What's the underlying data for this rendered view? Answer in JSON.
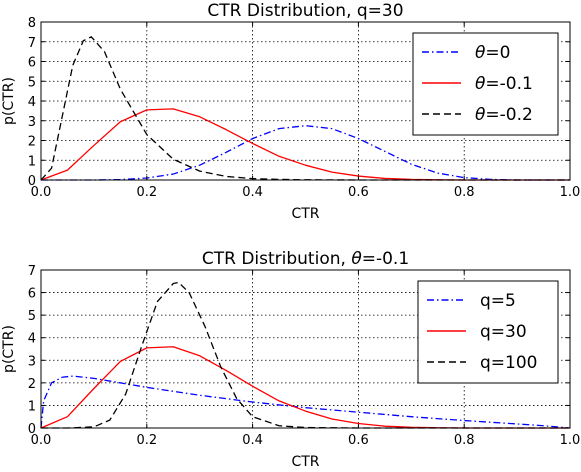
{
  "chart_data": [
    {
      "type": "line",
      "title_prefix": "CTR Distribution, ",
      "title_symbol": "",
      "title_suffix": "q=30",
      "xlabel": "CTR",
      "ylabel": "p(CTR)",
      "xlim": [
        0,
        1.0
      ],
      "ylim": [
        0,
        8
      ],
      "xticks": [
        "0.0",
        "0.2",
        "0.4",
        "0.6",
        "0.8",
        "1.0"
      ],
      "yticks": [
        "0",
        "1",
        "2",
        "3",
        "4",
        "5",
        "6",
        "7",
        "8"
      ],
      "grid": true,
      "legend_position": "top-right",
      "series": [
        {
          "name_symbol": "θ",
          "name_suffix": "=0",
          "color": "#0000ff",
          "style": "dashdot",
          "x": [
            0.0,
            0.05,
            0.1,
            0.15,
            0.2,
            0.25,
            0.3,
            0.35,
            0.4,
            0.45,
            0.5,
            0.55,
            0.6,
            0.65,
            0.7,
            0.75,
            0.8,
            0.85,
            0.9,
            0.95,
            1.0
          ],
          "y": [
            0.0,
            0.0,
            0.0,
            0.02,
            0.1,
            0.3,
            0.75,
            1.4,
            2.1,
            2.6,
            2.75,
            2.6,
            2.1,
            1.45,
            0.8,
            0.35,
            0.12,
            0.03,
            0.0,
            0.0,
            0.0
          ]
        },
        {
          "name_symbol": "θ",
          "name_suffix": "=-0.1",
          "color": "#ff0000",
          "style": "solid",
          "x": [
            0.0,
            0.05,
            0.1,
            0.15,
            0.2,
            0.25,
            0.3,
            0.35,
            0.4,
            0.45,
            0.5,
            0.55,
            0.6,
            0.65,
            0.7,
            0.75,
            0.8,
            0.85,
            0.9,
            0.95,
            1.0
          ],
          "y": [
            0.0,
            0.5,
            1.75,
            2.95,
            3.55,
            3.6,
            3.2,
            2.55,
            1.85,
            1.2,
            0.75,
            0.4,
            0.2,
            0.08,
            0.03,
            0.01,
            0.0,
            0.0,
            0.0,
            0.0,
            0.0
          ]
        },
        {
          "name_symbol": "θ",
          "name_suffix": "=-0.2",
          "color": "#000000",
          "style": "dashed",
          "x": [
            0.0,
            0.02,
            0.04,
            0.06,
            0.08,
            0.095,
            0.12,
            0.15,
            0.2,
            0.25,
            0.3,
            0.35,
            0.4,
            0.45,
            0.5,
            0.6,
            0.7,
            0.8,
            0.9,
            1.0
          ],
          "y": [
            0.0,
            0.6,
            3.2,
            5.8,
            7.05,
            7.25,
            6.5,
            4.6,
            2.3,
            1.05,
            0.45,
            0.18,
            0.07,
            0.03,
            0.01,
            0.0,
            0.0,
            0.0,
            0.0,
            0.0
          ]
        }
      ]
    },
    {
      "type": "line",
      "title_prefix": "CTR Distribution, ",
      "title_symbol": "θ",
      "title_suffix": "=-0.1",
      "xlabel": "CTR",
      "ylabel": "p(CTR)",
      "xlim": [
        0,
        1.0
      ],
      "ylim": [
        0,
        7
      ],
      "xticks": [
        "0.0",
        "0.2",
        "0.4",
        "0.6",
        "0.8",
        "1.0"
      ],
      "yticks": [
        "0",
        "1",
        "2",
        "3",
        "4",
        "5",
        "6",
        "7"
      ],
      "grid": true,
      "legend_position": "top-right",
      "series": [
        {
          "name_symbol": "",
          "name_suffix": "q=5",
          "color": "#0000ff",
          "style": "dashdot",
          "x": [
            0.0,
            0.005,
            0.02,
            0.04,
            0.06,
            0.1,
            0.2,
            0.3,
            0.4,
            0.5,
            0.6,
            0.7,
            0.8,
            0.9,
            0.95,
            0.98,
            1.0
          ],
          "y": [
            0.0,
            1.2,
            2.0,
            2.25,
            2.3,
            2.2,
            1.8,
            1.45,
            1.15,
            0.9,
            0.7,
            0.5,
            0.33,
            0.18,
            0.1,
            0.04,
            0.0
          ]
        },
        {
          "name_symbol": "",
          "name_suffix": "q=30",
          "color": "#ff0000",
          "style": "solid",
          "x": [
            0.0,
            0.05,
            0.1,
            0.15,
            0.2,
            0.25,
            0.3,
            0.35,
            0.4,
            0.45,
            0.5,
            0.55,
            0.6,
            0.65,
            0.7,
            0.75,
            0.8,
            0.85,
            0.9,
            0.95,
            1.0
          ],
          "y": [
            0.0,
            0.5,
            1.75,
            2.95,
            3.55,
            3.6,
            3.2,
            2.55,
            1.85,
            1.2,
            0.75,
            0.4,
            0.2,
            0.08,
            0.03,
            0.01,
            0.0,
            0.0,
            0.0,
            0.0,
            0.0
          ]
        },
        {
          "name_symbol": "",
          "name_suffix": "q=100",
          "color": "#000000",
          "style": "dashed",
          "x": [
            0.0,
            0.05,
            0.1,
            0.13,
            0.16,
            0.19,
            0.22,
            0.25,
            0.26,
            0.28,
            0.31,
            0.34,
            0.37,
            0.4,
            0.45,
            0.5,
            0.6,
            0.8,
            1.0
          ],
          "y": [
            0.0,
            0.0,
            0.05,
            0.35,
            1.5,
            3.6,
            5.6,
            6.4,
            6.45,
            6.0,
            4.5,
            2.7,
            1.3,
            0.5,
            0.1,
            0.02,
            0.0,
            0.0,
            0.0
          ]
        }
      ]
    }
  ]
}
